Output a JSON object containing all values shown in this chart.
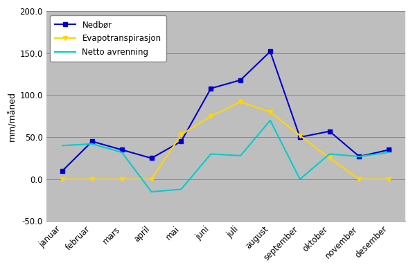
{
  "months": [
    "januar",
    "februar",
    "mars",
    "april",
    "mai",
    "juni",
    "juli",
    "august",
    "september",
    "oktober",
    "november",
    "desember"
  ],
  "nedboer": [
    10,
    45,
    35,
    25,
    45,
    108,
    118,
    152,
    50,
    57,
    27,
    35
  ],
  "evapotranspirasjon": [
    0,
    0,
    0,
    0,
    53,
    75,
    92,
    80,
    52,
    25,
    0,
    0
  ],
  "netto_avrenning": [
    40,
    42,
    32,
    -15,
    -12,
    30,
    28,
    70,
    0,
    30,
    27,
    32
  ],
  "nedboer_color": "#0000CD",
  "evapotranspirasjon_color": "#FFD700",
  "netto_avrenning_color": "#00CDCD",
  "ylabel": "mm/måned",
  "ylim": [
    -50,
    200
  ],
  "yticks": [
    -50.0,
    0.0,
    50.0,
    100.0,
    150.0,
    200.0
  ],
  "figure_facecolor": "#FFFFFF",
  "plot_bg_color": "#BEBEBE",
  "legend_nedboer": "Nedbør",
  "legend_evapo": "Evapotranspirasjon",
  "legend_netto": "Netto avrenning"
}
